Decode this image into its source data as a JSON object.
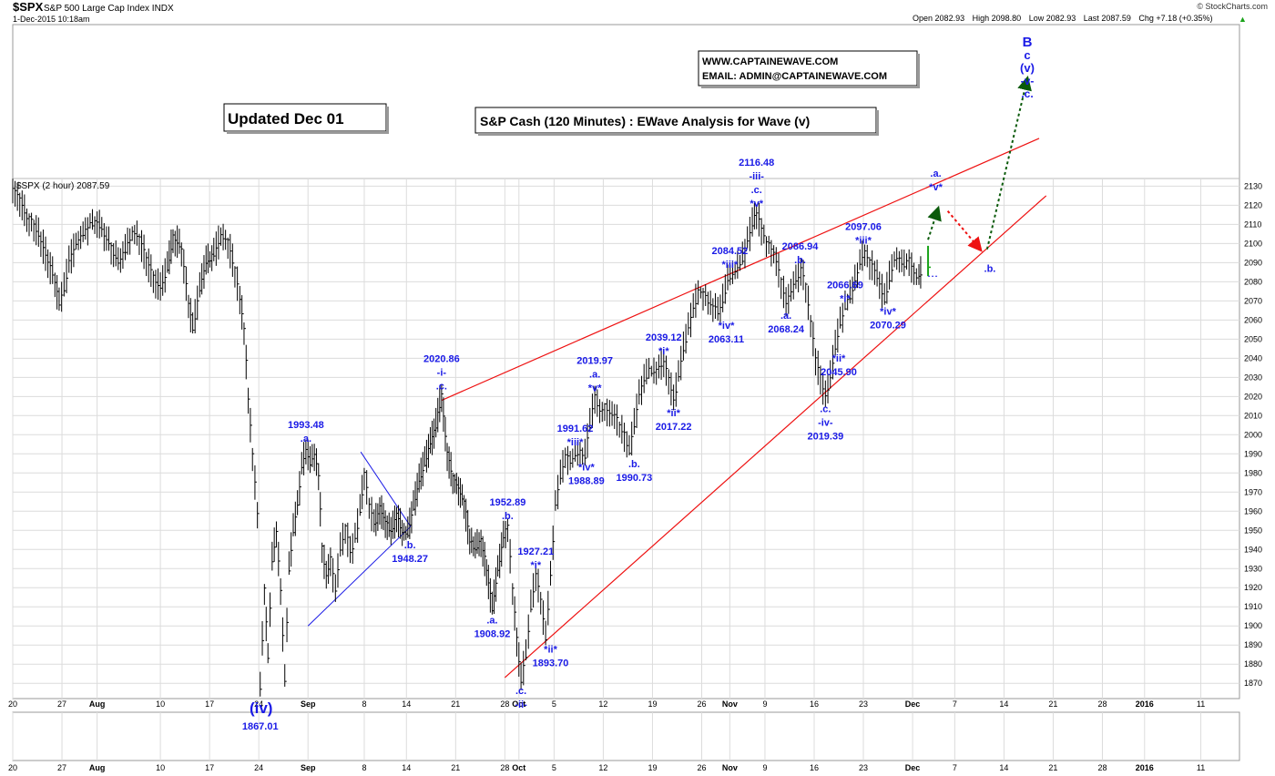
{
  "header": {
    "symbol": "$SPX",
    "name": "S&P 500 Large Cap Index",
    "exchange": "INDX",
    "datetime": "1-Dec-2015 10:18am",
    "source": "© StockCharts.com",
    "quote": [
      {
        "label": "Open",
        "value": "2082.93"
      },
      {
        "label": "High",
        "value": "2098.80"
      },
      {
        "label": "Low",
        "value": "2082.93"
      },
      {
        "label": "Last",
        "value": "2087.59"
      },
      {
        "label": "Chg",
        "value": "+7.18 (+0.35%)"
      }
    ],
    "arrow": "▲"
  },
  "boxes": {
    "updated": "Updated Dec 01",
    "title": "S&P Cash (120 Minutes) : EWave Analysis for Wave (v)",
    "website": "WWW.CAPTAINEWAVE.COM",
    "email": "EMAIL: ADMIN@CAPTAINEWAVE.COM"
  },
  "legend": "$SPX (2 hour) 2087.59",
  "colors": {
    "price": "#000000",
    "last_bar": "#1aa31a",
    "channel": "#ee1111",
    "wave_label": "#1a1ae6",
    "triangle": "#1a1ae6",
    "projection_up": "#0a5a0a",
    "projection_down": "#ee1111",
    "grid": "#dcdcdc"
  },
  "chart_data": {
    "type": "line",
    "ylim": [
      1862,
      2134
    ],
    "yticks": [
      1870,
      1880,
      1890,
      1900,
      1910,
      1920,
      1930,
      1940,
      1950,
      1960,
      1970,
      1980,
      1990,
      2000,
      2010,
      2020,
      2030,
      2040,
      2050,
      2060,
      2070,
      2080,
      2090,
      2100,
      2110,
      2120,
      2130
    ],
    "xticks": [
      {
        "t": 0,
        "label": "20"
      },
      {
        "t": 7,
        "label": "27"
      },
      {
        "t": 12,
        "label": "Aug"
      },
      {
        "t": 21,
        "label": "10"
      },
      {
        "t": 28,
        "label": "17"
      },
      {
        "t": 35,
        "label": "24"
      },
      {
        "t": 42,
        "label": "Sep"
      },
      {
        "t": 50,
        "label": "8"
      },
      {
        "t": 56,
        "label": "14"
      },
      {
        "t": 63,
        "label": "21"
      },
      {
        "t": 70,
        "label": "28"
      },
      {
        "t": 72,
        "label": "Oct"
      },
      {
        "t": 77,
        "label": "5"
      },
      {
        "t": 84,
        "label": "12"
      },
      {
        "t": 91,
        "label": "19"
      },
      {
        "t": 98,
        "label": "26"
      },
      {
        "t": 102,
        "label": "Nov"
      },
      {
        "t": 107,
        "label": "9"
      },
      {
        "t": 114,
        "label": "16"
      },
      {
        "t": 121,
        "label": "23"
      },
      {
        "t": 128,
        "label": "Dec"
      },
      {
        "t": 134,
        "label": "7"
      },
      {
        "t": 141,
        "label": "14"
      },
      {
        "t": 148,
        "label": "21"
      },
      {
        "t": 155,
        "label": "28"
      },
      {
        "t": 161,
        "label": "2016"
      },
      {
        "t": 169,
        "label": "11"
      }
    ],
    "xlim": [
      0,
      174.5
    ],
    "series": [
      {
        "points": [
          [
            0,
            2130
          ],
          [
            1,
            2123
          ],
          [
            2,
            2114
          ],
          [
            3,
            2110
          ],
          [
            4,
            2102
          ],
          [
            5,
            2091
          ],
          [
            6,
            2081
          ],
          [
            6.6,
            2068
          ],
          [
            7.3,
            2076
          ],
          [
            8,
            2090
          ],
          [
            9,
            2100
          ],
          [
            10,
            2104
          ],
          [
            11,
            2110
          ],
          [
            12,
            2112
          ],
          [
            13,
            2105
          ],
          [
            14,
            2098
          ],
          [
            15,
            2090
          ],
          [
            16,
            2096
          ],
          [
            17,
            2106
          ],
          [
            18,
            2103
          ],
          [
            19,
            2092
          ],
          [
            20,
            2082
          ],
          [
            21,
            2076
          ],
          [
            22,
            2087
          ],
          [
            22.8,
            2104
          ],
          [
            24,
            2097
          ],
          [
            25,
            2070
          ],
          [
            25.6,
            2055
          ],
          [
            26.6,
            2076
          ],
          [
            27.5,
            2090
          ],
          [
            28.6,
            2094
          ],
          [
            29.6,
            2104
          ],
          [
            30.6,
            2101
          ],
          [
            31.6,
            2086
          ],
          [
            32.3,
            2072
          ],
          [
            32.9,
            2056
          ],
          [
            33.5,
            2020
          ],
          [
            34.1,
            1990
          ],
          [
            34.8,
            1960
          ],
          [
            35.2,
            1867
          ],
          [
            35.8,
            1920
          ],
          [
            36.3,
            1882
          ],
          [
            36.9,
            1935
          ],
          [
            37.5,
            1950
          ],
          [
            38.1,
            1920
          ],
          [
            38.7,
            1871
          ],
          [
            39.3,
            1930
          ],
          [
            39.9,
            1950
          ],
          [
            40.5,
            1962
          ],
          [
            41.1,
            1982
          ],
          [
            41.7,
            1993.48
          ],
          [
            42.3,
            1985
          ],
          [
            42.9,
            1990
          ],
          [
            43.5,
            1980
          ],
          [
            44,
            1942
          ],
          [
            44.6,
            1925
          ],
          [
            45.2,
            1935
          ],
          [
            45.9,
            1918
          ],
          [
            46.6,
            1940
          ],
          [
            47.3,
            1952
          ],
          [
            48,
            1938
          ],
          [
            48.7,
            1945
          ],
          [
            49.4,
            1960
          ],
          [
            50,
            1980
          ],
          [
            50.7,
            1965
          ],
          [
            51.4,
            1952
          ],
          [
            52.2,
            1962
          ],
          [
            53,
            1955
          ],
          [
            53.8,
            1948
          ],
          [
            54.6,
            1958
          ],
          [
            55.4,
            1950
          ],
          [
            56.2,
            1948.27
          ],
          [
            57,
            1962
          ],
          [
            57.8,
            1976
          ],
          [
            58.6,
            1985
          ],
          [
            59.4,
            1995
          ],
          [
            60.2,
            2005
          ],
          [
            61,
            2020.86
          ],
          [
            61.8,
            1990
          ],
          [
            62.6,
            1978
          ],
          [
            63.4,
            1972
          ],
          [
            64.2,
            1965
          ],
          [
            65,
            1945
          ],
          [
            65.8,
            1940
          ],
          [
            66.6,
            1945
          ],
          [
            67.4,
            1930
          ],
          [
            68.2,
            1908.92
          ],
          [
            69,
            1928
          ],
          [
            69.8,
            1946
          ],
          [
            70.4,
            1952.89
          ],
          [
            71.1,
            1920
          ],
          [
            71.7,
            1893
          ],
          [
            72.3,
            1871.91
          ],
          [
            73,
            1884
          ],
          [
            73.7,
            1910
          ],
          [
            74.4,
            1927.21
          ],
          [
            75.1,
            1915
          ],
          [
            75.8,
            1893.7
          ],
          [
            76.5,
            1925
          ],
          [
            77.2,
            1962
          ],
          [
            77.9,
            1978
          ],
          [
            78.6,
            1990
          ],
          [
            79.3,
            1985
          ],
          [
            80,
            1990
          ],
          [
            80.7,
            1991.62
          ],
          [
            81.4,
            1988.89
          ],
          [
            82.1,
            2005
          ],
          [
            82.8,
            2019.97
          ],
          [
            83.5,
            2012
          ],
          [
            84.2,
            2015
          ],
          [
            84.9,
            2010
          ],
          [
            85.6,
            2012
          ],
          [
            86.3,
            2005
          ],
          [
            87,
            2000
          ],
          [
            87.7,
            1990.73
          ],
          [
            88.4,
            2005
          ],
          [
            89.1,
            2020
          ],
          [
            89.8,
            2028
          ],
          [
            90.5,
            2034
          ],
          [
            91.2,
            2032
          ],
          [
            91.9,
            2035
          ],
          [
            92.6,
            2039.12
          ],
          [
            93.3,
            2030
          ],
          [
            94,
            2017.22
          ],
          [
            94.7,
            2030
          ],
          [
            95.4,
            2045
          ],
          [
            96.1,
            2055
          ],
          [
            96.8,
            2065
          ],
          [
            97.5,
            2075
          ],
          [
            98.2,
            2074
          ],
          [
            98.9,
            2070
          ],
          [
            99.6,
            2068
          ],
          [
            100.3,
            2063.11
          ],
          [
            101,
            2070
          ],
          [
            101.7,
            2080
          ],
          [
            102.4,
            2084.52
          ],
          [
            103.1,
            2088
          ],
          [
            103.8,
            2092
          ],
          [
            104.5,
            2100
          ],
          [
            105.2,
            2110
          ],
          [
            105.8,
            2116.48
          ],
          [
            106.5,
            2108
          ],
          [
            107.2,
            2102
          ],
          [
            107.9,
            2097
          ],
          [
            108.6,
            2092
          ],
          [
            109.3,
            2080
          ],
          [
            110,
            2068.24
          ],
          [
            110.7,
            2075
          ],
          [
            111.4,
            2080
          ],
          [
            112.1,
            2086.94
          ],
          [
            112.8,
            2078
          ],
          [
            113.5,
            2060
          ],
          [
            114.2,
            2040
          ],
          [
            114.9,
            2030
          ],
          [
            115.6,
            2019.39
          ],
          [
            116.3,
            2030
          ],
          [
            117,
            2045.9
          ],
          [
            117.7,
            2058
          ],
          [
            118.4,
            2066.69
          ],
          [
            119.1,
            2072
          ],
          [
            119.8,
            2080
          ],
          [
            120.5,
            2088
          ],
          [
            121.2,
            2097.06
          ],
          [
            121.9,
            2090
          ],
          [
            122.6,
            2086
          ],
          [
            123.3,
            2080
          ],
          [
            124,
            2070.29
          ],
          [
            124.7,
            2082
          ],
          [
            125.4,
            2090
          ],
          [
            126.1,
            2093
          ],
          [
            126.8,
            2088
          ],
          [
            127.5,
            2092
          ],
          [
            128.2,
            2085
          ],
          [
            128.9,
            2082
          ],
          [
            129.4,
            2087.59
          ]
        ]
      }
    ],
    "last_bar": {
      "t": 130.2,
      "open": 2082.93,
      "high": 2098.8,
      "low": 2082.93,
      "close": 2087.59
    },
    "channel_lines": [
      {
        "from": [
          61,
          2018
        ],
        "to": [
          146,
          2155
        ]
      },
      {
        "from": [
          70,
          1873
        ],
        "to": [
          147,
          2125
        ]
      }
    ],
    "triangle_lines": [
      {
        "from": [
          42,
          1900
        ],
        "to": [
          56.6,
          1952
        ]
      },
      {
        "from": [
          49.5,
          1991
        ],
        "to": [
          56.6,
          1952
        ]
      }
    ],
    "projection": [
      {
        "from": [
          130.2,
          2102
        ],
        "to": [
          131.6,
          2118
        ],
        "style": "up"
      },
      {
        "from": [
          133,
          2117
        ],
        "to": [
          137.6,
          2097
        ],
        "style": "down"
      },
      {
        "from": [
          138.6,
          2097
        ],
        "to": [
          144.3,
          2186
        ],
        "style": "up"
      }
    ],
    "wave_labels": [
      {
        "t": 41.7,
        "y": 1993.48,
        "lines": [
          "1993.48",
          ".a."
        ],
        "pos": "above"
      },
      {
        "t": 56.5,
        "y": 1948.27,
        "lines": [
          ".b.",
          "1948.27"
        ],
        "pos": "below"
      },
      {
        "t": 61,
        "y": 2020.86,
        "lines": [
          "2020.86",
          "-i-",
          ".c."
        ],
        "pos": "above"
      },
      {
        "t": 68.2,
        "y": 1908.92,
        "lines": [
          ".a.",
          "1908.92"
        ],
        "pos": "below"
      },
      {
        "t": 70.4,
        "y": 1952.89,
        "lines": [
          "1952.89",
          ".b."
        ],
        "pos": "above"
      },
      {
        "t": 72.3,
        "y": 1871.91,
        "lines": [
          ".c.",
          "-ii-"
        ],
        "pos": "below"
      },
      {
        "t": 74.4,
        "y": 1927.21,
        "lines": [
          "1927.21",
          "*i*"
        ],
        "pos": "above"
      },
      {
        "t": 76.5,
        "y": 1893.7,
        "lines": [
          "*ii*",
          "1893.70"
        ],
        "pos": "below"
      },
      {
        "t": 80,
        "y": 1991.62,
        "lines": [
          "1991.62",
          "*iii*"
        ],
        "pos": "above"
      },
      {
        "t": 81.6,
        "y": 1988.89,
        "lines": [
          "*iv*",
          "1988.89"
        ],
        "pos": "below"
      },
      {
        "t": 82.8,
        "y": 2019.97,
        "lines": [
          "2019.97",
          ".a.",
          "*v*"
        ],
        "pos": "above"
      },
      {
        "t": 88.4,
        "y": 1990.73,
        "lines": [
          ".b.",
          "1990.73"
        ],
        "pos": "below"
      },
      {
        "t": 92.6,
        "y": 2039.12,
        "lines": [
          "2039.12",
          "*i*"
        ],
        "pos": "above"
      },
      {
        "t": 94,
        "y": 2017.22,
        "lines": [
          "*ii*",
          "2017.22"
        ],
        "pos": "below"
      },
      {
        "t": 102,
        "y": 2084.52,
        "lines": [
          "2084.52",
          "*iii*"
        ],
        "pos": "above"
      },
      {
        "t": 101.5,
        "y": 2063.11,
        "lines": [
          "*iv*",
          "2063.11"
        ],
        "pos": "below"
      },
      {
        "t": 105.8,
        "y": 2116.48,
        "lines": [
          "2116.48",
          "-iii-",
          ".c.",
          "*v*"
        ],
        "pos": "above"
      },
      {
        "t": 110,
        "y": 2068.24,
        "lines": [
          ".a.",
          "2068.24"
        ],
        "pos": "below"
      },
      {
        "t": 112,
        "y": 2086.94,
        "lines": [
          "2086.94",
          ".b."
        ],
        "pos": "above"
      },
      {
        "t": 115.6,
        "y": 2019.39,
        "lines": [
          ".c.",
          "-iv-",
          "2019.39"
        ],
        "pos": "below"
      },
      {
        "t": 117.5,
        "y": 2045.9,
        "lines": [
          "*ii*",
          "2045.90"
        ],
        "pos": "below"
      },
      {
        "t": 118.4,
        "y": 2066.69,
        "lines": [
          "2066.69",
          "*i*"
        ],
        "pos": "above"
      },
      {
        "t": 121,
        "y": 2097.06,
        "lines": [
          "2097.06",
          "*iii*"
        ],
        "pos": "above"
      },
      {
        "t": 124.5,
        "y": 2070.29,
        "lines": [
          "*iv*",
          "2070.29"
        ],
        "pos": "below"
      },
      {
        "t": 131.3,
        "y": 2125,
        "lines": [
          ".a.",
          "*v*"
        ],
        "pos": "above"
      },
      {
        "t": 139,
        "y": 2087,
        "lines": [
          ".b."
        ],
        "pos": "at"
      },
      {
        "t": 35.2,
        "y": 1867.01,
        "lines": [
          "1867.01"
        ],
        "pos": "below-axis"
      }
    ],
    "wave_iv_label": "(iv)",
    "top_stack": [
      "B",
      "c",
      "(v)",
      "-v-",
      ".c."
    ]
  }
}
